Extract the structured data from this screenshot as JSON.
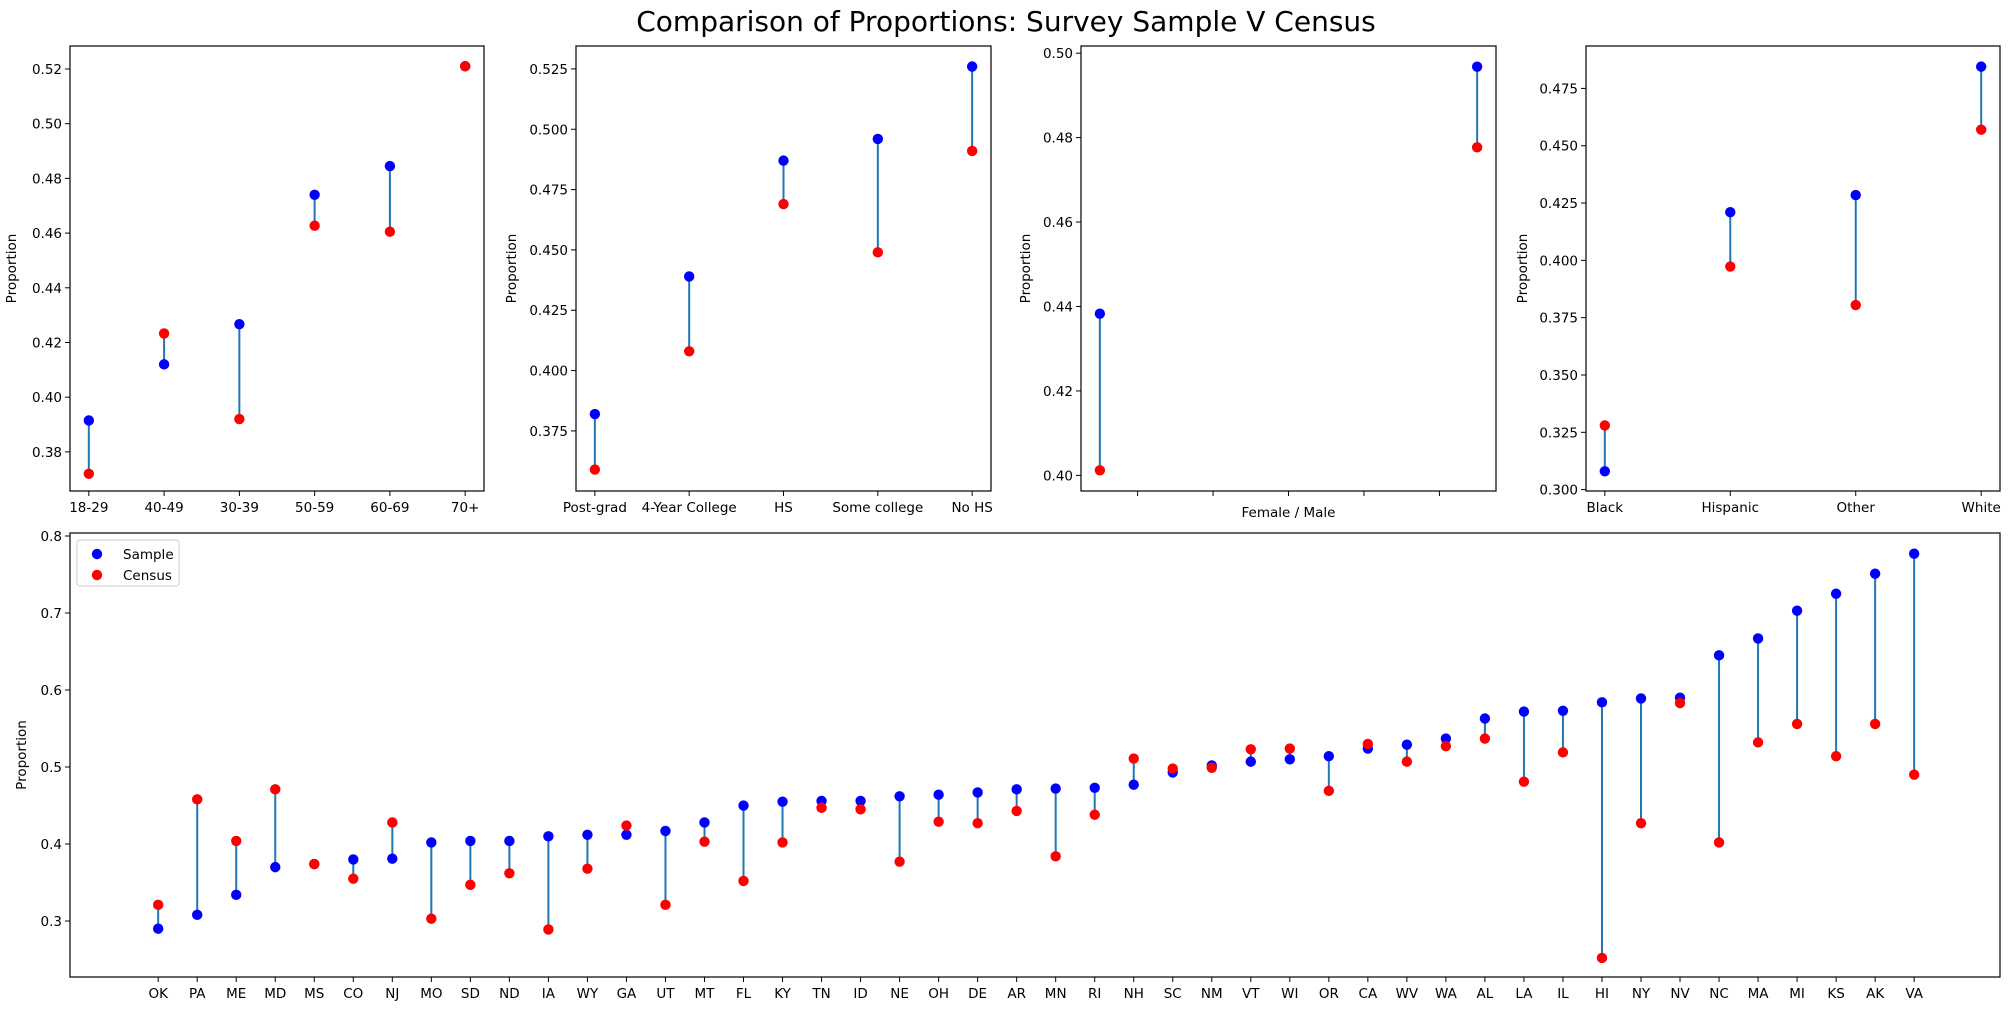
{
  "figure_title": "Comparison of Proportions: Survey Sample V Census",
  "colors": {
    "sample": "#0000ff",
    "census": "#ff0000",
    "connector": "#1f77b4"
  },
  "chart_data": [
    {
      "type": "scatter",
      "subtype": "dumbbell",
      "title": "",
      "xlabel": "",
      "ylabel": "Proportion",
      "categories": [
        "18-29",
        "40-49",
        "30-39",
        "50-59",
        "60-69",
        "70+"
      ],
      "series": [
        {
          "name": "Sample",
          "values": [
            0.3915,
            0.412,
            0.4267,
            0.474,
            0.4845,
            0.521
          ]
        },
        {
          "name": "Census",
          "values": [
            0.372,
            0.4233,
            0.392,
            0.4627,
            0.4605,
            0.521
          ]
        }
      ],
      "ylim": [
        0.3657,
        0.5284
      ],
      "yticks": [
        0.38,
        0.4,
        0.42,
        0.44,
        0.46,
        0.48,
        0.5,
        0.52
      ],
      "ytick_labels": [
        "0.38",
        "0.40",
        "0.42",
        "0.44",
        "0.46",
        "0.48",
        "0.50",
        "0.52"
      ],
      "grid": false,
      "legend": null
    },
    {
      "type": "scatter",
      "subtype": "dumbbell",
      "title": "",
      "xlabel": "",
      "ylabel": "Proportion",
      "categories": [
        "Post-grad",
        "4-Year College",
        "HS",
        "Some college",
        "No HS"
      ],
      "series": [
        {
          "name": "Sample",
          "values": [
            0.382,
            0.439,
            0.487,
            0.496,
            0.526
          ]
        },
        {
          "name": "Census",
          "values": [
            0.359,
            0.408,
            0.469,
            0.449,
            0.491
          ]
        }
      ],
      "ylim": [
        0.3501,
        0.5345
      ],
      "yticks": [
        0.375,
        0.4,
        0.425,
        0.45,
        0.475,
        0.5,
        0.525
      ],
      "ytick_labels": [
        "0.375",
        "0.400",
        "0.425",
        "0.450",
        "0.475",
        "0.500",
        "0.525"
      ],
      "grid": false,
      "legend": null
    },
    {
      "type": "scatter",
      "subtype": "dumbbell",
      "title": "",
      "xlabel": "Female / Male",
      "ylabel": "Proportion",
      "x": [
        0,
        1
      ],
      "xlim": [
        -0.05,
        1.05
      ],
      "xticks": [
        0.1,
        0.3,
        0.5,
        0.7,
        0.9
      ],
      "xtick_labels": [
        "",
        "",
        "",
        "",
        ""
      ],
      "series": [
        {
          "name": "Sample",
          "values": [
            0.4383,
            0.4968
          ]
        },
        {
          "name": "Census",
          "values": [
            0.4012,
            0.4777
          ]
        }
      ],
      "ylim": [
        0.3963,
        0.5017
      ],
      "yticks": [
        0.4,
        0.42,
        0.44,
        0.46,
        0.48,
        0.5
      ],
      "ytick_labels": [
        "0.40",
        "0.42",
        "0.44",
        "0.46",
        "0.48",
        "0.50"
      ],
      "grid": false,
      "legend": null
    },
    {
      "type": "scatter",
      "subtype": "dumbbell",
      "title": "",
      "xlabel": "",
      "ylabel": "Proportion",
      "categories": [
        "Black",
        "Hispanic",
        "Other",
        "White"
      ],
      "series": [
        {
          "name": "Sample",
          "values": [
            0.308,
            0.421,
            0.4285,
            0.4845
          ]
        },
        {
          "name": "Census",
          "values": [
            0.328,
            0.3973,
            0.3805,
            0.457
          ]
        }
      ],
      "ylim": [
        0.2994,
        0.4935
      ],
      "yticks": [
        0.3,
        0.325,
        0.35,
        0.375,
        0.4,
        0.425,
        0.45,
        0.475
      ],
      "ytick_labels": [
        "0.300",
        "0.325",
        "0.350",
        "0.375",
        "0.400",
        "0.425",
        "0.450",
        "0.475"
      ],
      "grid": false,
      "legend": null
    },
    {
      "type": "scatter",
      "subtype": "dumbbell",
      "title": "",
      "xlabel": "",
      "ylabel": "Proportion",
      "categories": [
        "OK",
        "PA",
        "ME",
        "MD",
        "MS",
        "CO",
        "NJ",
        "MO",
        "SD",
        "ND",
        "IA",
        "WY",
        "GA",
        "UT",
        "MT",
        "FL",
        "KY",
        "TN",
        "ID",
        "NE",
        "OH",
        "DE",
        "AR",
        "MN",
        "RI",
        "NH",
        "SC",
        "NM",
        "VT",
        "WI",
        "OR",
        "CA",
        "WV",
        "WA",
        "AL",
        "LA",
        "IL",
        "HI",
        "NY",
        "NV",
        "NC",
        "MA",
        "MI",
        "KS",
        "AK",
        "VA"
      ],
      "series": [
        {
          "name": "Sample",
          "values": [
            0.29,
            0.308,
            0.334,
            0.37,
            0.374,
            0.38,
            0.381,
            0.402,
            0.404,
            0.404,
            0.41,
            0.412,
            0.412,
            0.417,
            0.428,
            0.45,
            0.455,
            0.456,
            0.456,
            0.462,
            0.464,
            0.467,
            0.471,
            0.472,
            0.473,
            0.477,
            0.493,
            0.502,
            0.507,
            0.51,
            0.514,
            0.524,
            0.529,
            0.537,
            0.563,
            0.572,
            0.573,
            0.584,
            0.589,
            0.59,
            0.645,
            0.667,
            0.703,
            0.725,
            0.751,
            0.777
          ]
        },
        {
          "name": "Census",
          "values": [
            0.321,
            0.458,
            0.404,
            0.471,
            0.374,
            0.355,
            0.428,
            0.303,
            0.347,
            0.362,
            0.289,
            0.368,
            0.424,
            0.321,
            0.403,
            0.352,
            0.402,
            0.447,
            0.445,
            0.377,
            0.429,
            0.427,
            0.443,
            0.384,
            0.438,
            0.511,
            0.498,
            0.499,
            0.523,
            0.524,
            0.469,
            0.53,
            0.507,
            0.527,
            0.537,
            0.481,
            0.519,
            0.252,
            0.427,
            0.583,
            0.402,
            0.532,
            0.556,
            0.514,
            0.556,
            0.49
          ]
        }
      ],
      "xlim": [
        -2.26,
        47.2
      ],
      "ylim": [
        0.2273,
        0.8039
      ],
      "yticks": [
        0.3,
        0.4,
        0.5,
        0.6,
        0.7,
        0.8
      ],
      "ytick_labels": [
        "0.3",
        "0.4",
        "0.5",
        "0.6",
        "0.7",
        "0.8"
      ],
      "grid": false,
      "legend": {
        "position": "upper-left",
        "entries": [
          "Sample",
          "Census"
        ]
      }
    }
  ]
}
